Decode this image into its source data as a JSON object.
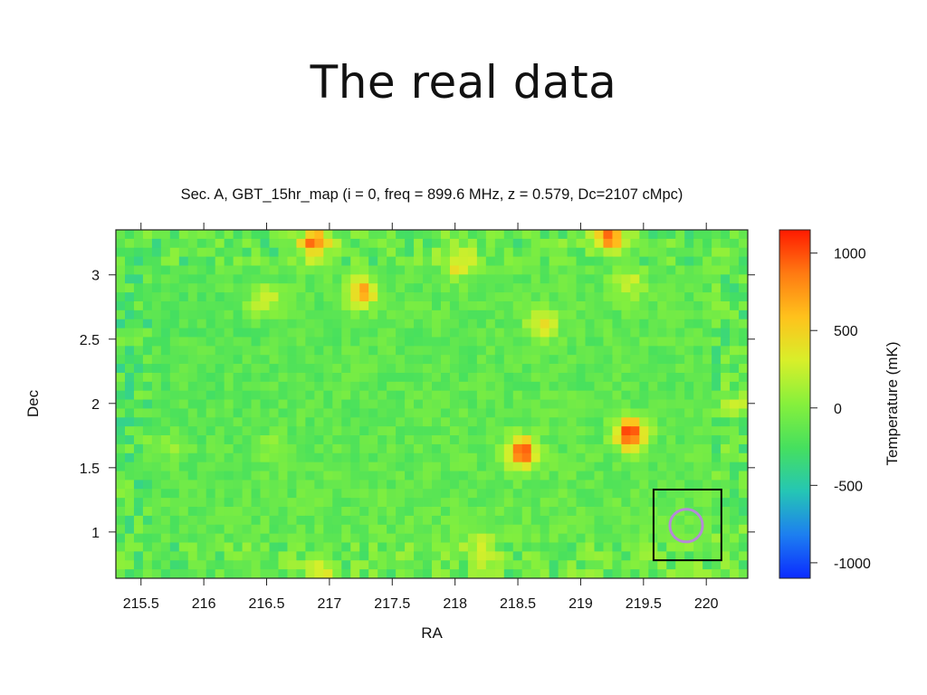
{
  "slide": {
    "title": "The real data"
  },
  "chart_data": {
    "type": "heatmap",
    "title": "Sec. A, GBT_15hr_map (i = 0, freq = 899.6 MHz, z = 0.579, Dc=2107 cMpc)",
    "xlabel": "RA",
    "ylabel": "Dec",
    "xlim": [
      215.3,
      220.33
    ],
    "ylim": [
      0.64,
      3.35
    ],
    "x_ticks": [
      215.5,
      216,
      216.5,
      217,
      217.5,
      218,
      218.5,
      219,
      219.5,
      220
    ],
    "x_tick_labels": [
      "215.5",
      "216",
      "216.5",
      "217",
      "217.5",
      "218",
      "218.5",
      "219",
      "219.5",
      "220"
    ],
    "y_ticks": [
      1,
      1.5,
      2,
      2.5,
      3
    ],
    "y_tick_labels": [
      "1",
      "1.5",
      "2",
      "2.5",
      "3"
    ],
    "grid": false,
    "colorbar": {
      "label": "Temperature (mK)",
      "range": [
        -1100,
        1150
      ],
      "ticks": [
        1000,
        500,
        0,
        -500,
        -1000
      ],
      "tick_labels": [
        "1000",
        "500",
        "0",
        "-500",
        "-1000"
      ],
      "colors": [
        "#0b2bff",
        "#1d7ff0",
        "#25c6b4",
        "#46e05e",
        "#86f03c",
        "#d8ef2a",
        "#ffc21c",
        "#ff7a12",
        "#ff1a00"
      ]
    },
    "background_level_mK": -150,
    "sources": [
      {
        "ra": 216.88,
        "dec": 3.24,
        "amplitude_mK": 1050
      },
      {
        "ra": 219.22,
        "dec": 3.29,
        "amplitude_mK": 1150
      },
      {
        "ra": 217.26,
        "dec": 2.87,
        "amplitude_mK": 830
      },
      {
        "ra": 218.02,
        "dec": 3.1,
        "amplitude_mK": 600
      },
      {
        "ra": 216.48,
        "dec": 2.8,
        "amplitude_mK": 480
      },
      {
        "ra": 219.38,
        "dec": 2.93,
        "amplitude_mK": 420
      },
      {
        "ra": 218.7,
        "dec": 2.61,
        "amplitude_mK": 620
      },
      {
        "ra": 218.53,
        "dec": 1.62,
        "amplitude_mK": 1150
      },
      {
        "ra": 219.4,
        "dec": 1.76,
        "amplitude_mK": 1250
      },
      {
        "ra": 216.9,
        "dec": 0.7,
        "amplitude_mK": 520
      },
      {
        "ra": 218.2,
        "dec": 0.88,
        "amplitude_mK": 480
      },
      {
        "ra": 220.25,
        "dec": 2.0,
        "amplitude_mK": 300
      },
      {
        "ra": 215.75,
        "dec": 1.65,
        "amplitude_mK": 200
      },
      {
        "ra": 216.55,
        "dec": 1.65,
        "amplitude_mK": 180
      }
    ],
    "annotations": [
      {
        "type": "rectangle",
        "ra_range": [
          219.58,
          220.12
        ],
        "dec_range": [
          0.78,
          1.33
        ],
        "color": "#000000"
      },
      {
        "type": "circle",
        "ra": 219.84,
        "dec": 1.05,
        "radius_deg": 0.13,
        "color": "#b58ad6"
      }
    ]
  }
}
